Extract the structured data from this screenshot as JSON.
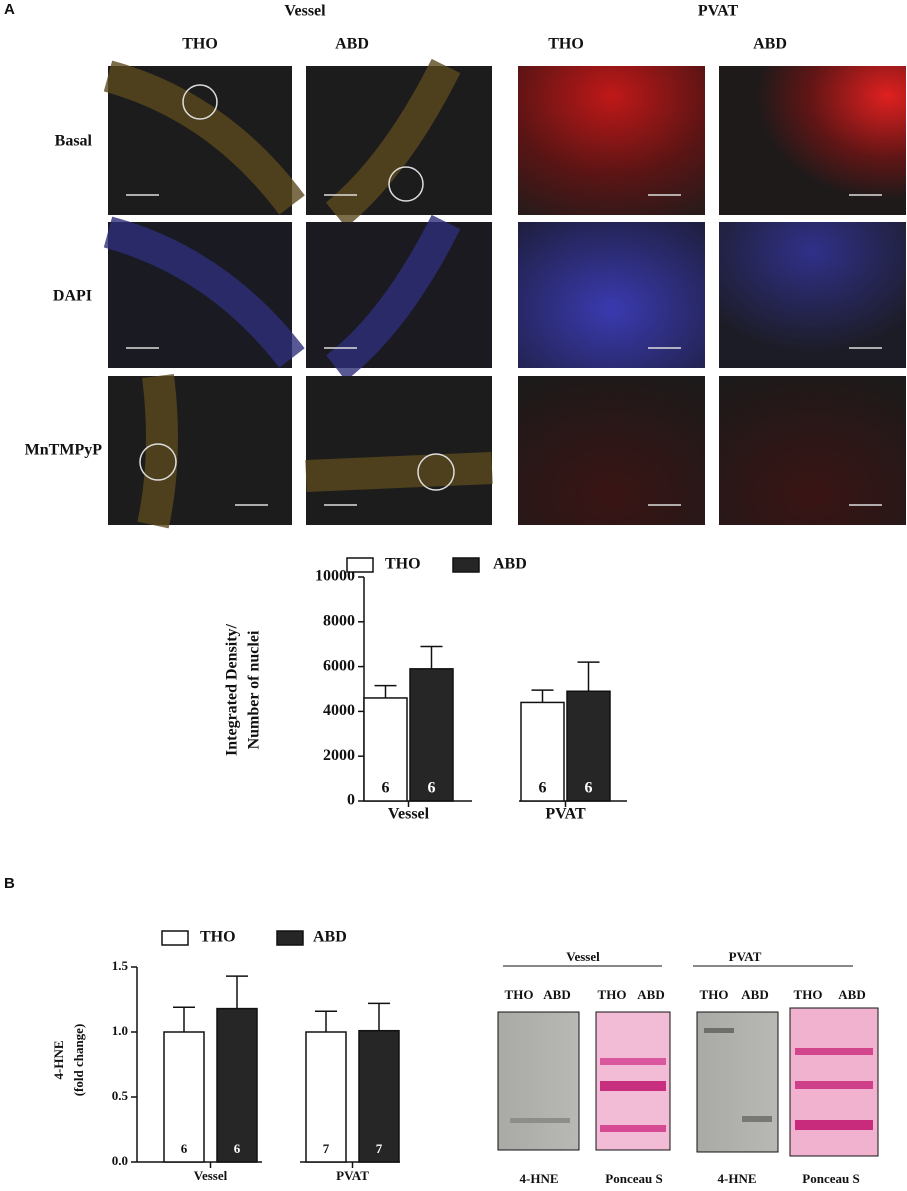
{
  "panel_a": {
    "label": "A",
    "groups": [
      "Vessel",
      "PVAT"
    ],
    "columns": [
      "THO",
      "ABD",
      "THO",
      "ABD"
    ],
    "rows": [
      "Basal",
      "DAPI",
      "MnTMPyP"
    ]
  },
  "chart_data": [
    {
      "type": "bar",
      "ylabel": [
        "Integrated Density/",
        "Number of nuclei"
      ],
      "categories": [
        "Vessel",
        "PVAT"
      ],
      "series": [
        {
          "name": "THO",
          "color": "#ffffff",
          "values": [
            4600,
            4400
          ],
          "errors": [
            550,
            550
          ],
          "n": [
            6,
            6
          ]
        },
        {
          "name": "ABD",
          "color": "#262626",
          "values": [
            5900,
            4900
          ],
          "errors": [
            1000,
            1300
          ],
          "n": [
            6,
            6
          ]
        }
      ],
      "ylim": [
        0,
        10000
      ],
      "yticks": [
        0,
        2000,
        4000,
        6000,
        8000,
        10000
      ]
    },
    {
      "type": "bar",
      "ylabel": [
        "4-HNE",
        "(fold change)"
      ],
      "categories": [
        "Vessel",
        "PVAT"
      ],
      "series": [
        {
          "name": "THO",
          "color": "#ffffff",
          "values": [
            1.0,
            1.0
          ],
          "errors": [
            0.19,
            0.16
          ],
          "n": [
            6,
            7
          ]
        },
        {
          "name": "ABD",
          "color": "#262626",
          "values": [
            1.18,
            1.01
          ],
          "errors": [
            0.25,
            0.21
          ],
          "n": [
            6,
            7
          ]
        }
      ],
      "ylim": [
        0,
        1.5
      ],
      "yticks": [
        {
          "value": 0,
          "label": "0.0"
        },
        {
          "value": 0.5,
          "label": "0.5"
        },
        {
          "value": 1,
          "label": "1.0"
        },
        {
          "value": 1.5,
          "label": "1.5"
        }
      ]
    }
  ],
  "panel_b": {
    "label": "B",
    "blots": [
      {
        "title": "Vessel",
        "lanes": [
          "THO",
          "ABD",
          "THO",
          "ABD"
        ],
        "stains": [
          "4-HNE",
          "Ponceau S"
        ]
      },
      {
        "title": "PVAT",
        "lanes": [
          "THO",
          "ABD",
          "THO",
          "ABD"
        ],
        "stains": [
          "4-HNE",
          "Ponceau S"
        ]
      }
    ]
  }
}
